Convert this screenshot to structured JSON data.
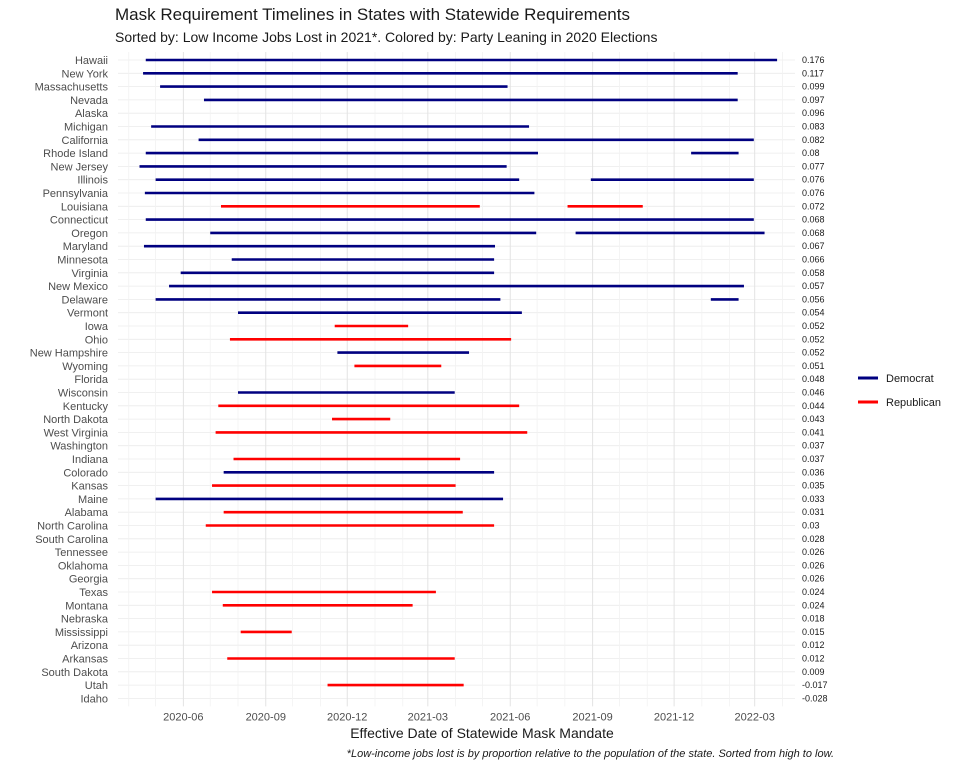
{
  "title": "Mask Requirement Timelines in States with Statewide Requirements",
  "subtitle": "Sorted by: Low Income Jobs Lost in 2021*. Colored by: Party Leaning in 2020 Elections",
  "footnote": "*Low-income jobs lost is by proportion relative to the population of the state. Sorted from high to low.",
  "chart_data": {
    "type": "bar",
    "orientation": "horizontal-timeline",
    "xlabel": "Effective Date of Statewide Mask Mandate",
    "ylabel": "",
    "x_ticks": [
      "2020-06",
      "2020-09",
      "2020-12",
      "2021-03",
      "2021-06",
      "2021-09",
      "2021-12",
      "2022-03"
    ],
    "xlim": [
      "2020-03-20",
      "2022-04-15"
    ],
    "grid": true,
    "legend": {
      "position": "right",
      "entries": [
        "Democrat",
        "Republican"
      ]
    },
    "colors": {
      "Democrat": "#000080",
      "Republican": "#ff0000"
    },
    "states": [
      {
        "name": "Hawaii",
        "value": "0.176",
        "party": "Democrat",
        "intervals": [
          [
            "2020-04-20",
            "2022-03-26"
          ]
        ]
      },
      {
        "name": "New York",
        "value": "0.117",
        "party": "Democrat",
        "intervals": [
          [
            "2020-04-17",
            "2022-02-10"
          ]
        ]
      },
      {
        "name": "Massachusetts",
        "value": "0.099",
        "party": "Democrat",
        "intervals": [
          [
            "2020-05-06",
            "2021-05-29"
          ]
        ]
      },
      {
        "name": "Nevada",
        "value": "0.097",
        "party": "Democrat",
        "intervals": [
          [
            "2020-06-24",
            "2022-02-10"
          ]
        ]
      },
      {
        "name": "Alaska",
        "value": "0.096",
        "party": "",
        "intervals": []
      },
      {
        "name": "Michigan",
        "value": "0.083",
        "party": "Democrat",
        "intervals": [
          [
            "2020-04-26",
            "2021-06-22"
          ]
        ]
      },
      {
        "name": "California",
        "value": "0.082",
        "party": "Democrat",
        "intervals": [
          [
            "2020-06-18",
            "2022-02-28"
          ]
        ]
      },
      {
        "name": "Rhode Island",
        "value": "0.08",
        "party": "Democrat",
        "intervals": [
          [
            "2020-04-20",
            "2021-07-02"
          ],
          [
            "2021-12-20",
            "2022-02-11"
          ]
        ]
      },
      {
        "name": "New Jersey",
        "value": "0.077",
        "party": "Democrat",
        "intervals": [
          [
            "2020-04-13",
            "2021-05-28"
          ]
        ]
      },
      {
        "name": "Illinois",
        "value": "0.076",
        "party": "Democrat",
        "intervals": [
          [
            "2020-05-01",
            "2021-06-11"
          ],
          [
            "2021-08-30",
            "2022-02-28"
          ]
        ]
      },
      {
        "name": "Pennsylvania",
        "value": "0.076",
        "party": "Democrat",
        "intervals": [
          [
            "2020-04-19",
            "2021-06-28"
          ]
        ]
      },
      {
        "name": "Louisiana",
        "value": "0.072",
        "party": "Republican",
        "intervals": [
          [
            "2020-07-13",
            "2021-04-28"
          ],
          [
            "2021-08-04",
            "2021-10-27"
          ]
        ]
      },
      {
        "name": "Connecticut",
        "value": "0.068",
        "party": "Democrat",
        "intervals": [
          [
            "2020-04-20",
            "2022-02-28"
          ]
        ]
      },
      {
        "name": "Oregon",
        "value": "0.068",
        "party": "Democrat",
        "intervals": [
          [
            "2020-07-01",
            "2021-06-30"
          ],
          [
            "2021-08-13",
            "2022-03-12"
          ]
        ]
      },
      {
        "name": "Maryland",
        "value": "0.067",
        "party": "Democrat",
        "intervals": [
          [
            "2020-04-18",
            "2021-05-15"
          ]
        ]
      },
      {
        "name": "Minnesota",
        "value": "0.066",
        "party": "Democrat",
        "intervals": [
          [
            "2020-07-25",
            "2021-05-14"
          ]
        ]
      },
      {
        "name": "Virginia",
        "value": "0.058",
        "party": "Democrat",
        "intervals": [
          [
            "2020-05-29",
            "2021-05-14"
          ]
        ]
      },
      {
        "name": "New Mexico",
        "value": "0.057",
        "party": "Democrat",
        "intervals": [
          [
            "2020-05-16",
            "2022-02-17"
          ]
        ]
      },
      {
        "name": "Delaware",
        "value": "0.056",
        "party": "Democrat",
        "intervals": [
          [
            "2020-05-01",
            "2021-05-21"
          ],
          [
            "2022-01-11",
            "2022-02-11"
          ]
        ]
      },
      {
        "name": "Vermont",
        "value": "0.054",
        "party": "Democrat",
        "intervals": [
          [
            "2020-08-01",
            "2021-06-14"
          ]
        ]
      },
      {
        "name": "Iowa",
        "value": "0.052",
        "party": "Republican",
        "intervals": [
          [
            "2020-11-17",
            "2021-02-07"
          ]
        ]
      },
      {
        "name": "Ohio",
        "value": "0.052",
        "party": "Republican",
        "intervals": [
          [
            "2020-07-23",
            "2021-06-02"
          ]
        ]
      },
      {
        "name": "New Hampshire",
        "value": "0.052",
        "party": "Democrat",
        "intervals": [
          [
            "2020-11-20",
            "2021-04-16"
          ]
        ]
      },
      {
        "name": "Wyoming",
        "value": "0.051",
        "party": "Republican",
        "intervals": [
          [
            "2020-12-09",
            "2021-03-16"
          ]
        ]
      },
      {
        "name": "Florida",
        "value": "0.048",
        "party": "",
        "intervals": []
      },
      {
        "name": "Wisconsin",
        "value": "0.046",
        "party": "Democrat",
        "intervals": [
          [
            "2020-08-01",
            "2021-03-31"
          ]
        ]
      },
      {
        "name": "Kentucky",
        "value": "0.044",
        "party": "Republican",
        "intervals": [
          [
            "2020-07-10",
            "2021-06-11"
          ]
        ]
      },
      {
        "name": "North Dakota",
        "value": "0.043",
        "party": "Republican",
        "intervals": [
          [
            "2020-11-14",
            "2021-01-18"
          ]
        ]
      },
      {
        "name": "West Virginia",
        "value": "0.041",
        "party": "Republican",
        "intervals": [
          [
            "2020-07-07",
            "2021-06-20"
          ]
        ]
      },
      {
        "name": "Washington",
        "value": "0.037",
        "party": "",
        "intervals": []
      },
      {
        "name": "Indiana",
        "value": "0.037",
        "party": "Republican",
        "intervals": [
          [
            "2020-07-27",
            "2021-04-06"
          ]
        ]
      },
      {
        "name": "Colorado",
        "value": "0.036",
        "party": "Democrat",
        "intervals": [
          [
            "2020-07-16",
            "2021-05-14"
          ]
        ]
      },
      {
        "name": "Kansas",
        "value": "0.035",
        "party": "Republican",
        "intervals": [
          [
            "2020-07-03",
            "2021-04-01"
          ]
        ]
      },
      {
        "name": "Maine",
        "value": "0.033",
        "party": "Democrat",
        "intervals": [
          [
            "2020-05-01",
            "2021-05-24"
          ]
        ]
      },
      {
        "name": "Alabama",
        "value": "0.031",
        "party": "Republican",
        "intervals": [
          [
            "2020-07-16",
            "2021-04-09"
          ]
        ]
      },
      {
        "name": "North Carolina",
        "value": "0.03",
        "party": "Republican",
        "intervals": [
          [
            "2020-06-26",
            "2021-05-14"
          ]
        ]
      },
      {
        "name": "South Carolina",
        "value": "0.028",
        "party": "",
        "intervals": []
      },
      {
        "name": "Tennessee",
        "value": "0.026",
        "party": "",
        "intervals": []
      },
      {
        "name": "Oklahoma",
        "value": "0.026",
        "party": "",
        "intervals": []
      },
      {
        "name": "Georgia",
        "value": "0.026",
        "party": "",
        "intervals": []
      },
      {
        "name": "Texas",
        "value": "0.024",
        "party": "Republican",
        "intervals": [
          [
            "2020-07-03",
            "2021-03-10"
          ]
        ]
      },
      {
        "name": "Montana",
        "value": "0.024",
        "party": "Republican",
        "intervals": [
          [
            "2020-07-15",
            "2021-02-12"
          ]
        ]
      },
      {
        "name": "Nebraska",
        "value": "0.018",
        "party": "",
        "intervals": []
      },
      {
        "name": "Mississippi",
        "value": "0.015",
        "party": "Republican",
        "intervals": [
          [
            "2020-08-04",
            "2020-09-30"
          ]
        ]
      },
      {
        "name": "Arizona",
        "value": "0.012",
        "party": "",
        "intervals": []
      },
      {
        "name": "Arkansas",
        "value": "0.012",
        "party": "Republican",
        "intervals": [
          [
            "2020-07-20",
            "2021-03-31"
          ]
        ]
      },
      {
        "name": "South Dakota",
        "value": "0.009",
        "party": "",
        "intervals": []
      },
      {
        "name": "Utah",
        "value": "-0.017",
        "party": "Republican",
        "intervals": [
          [
            "2020-11-09",
            "2021-04-10"
          ]
        ]
      },
      {
        "name": "Idaho",
        "value": "-0.028",
        "party": "",
        "intervals": []
      }
    ]
  }
}
